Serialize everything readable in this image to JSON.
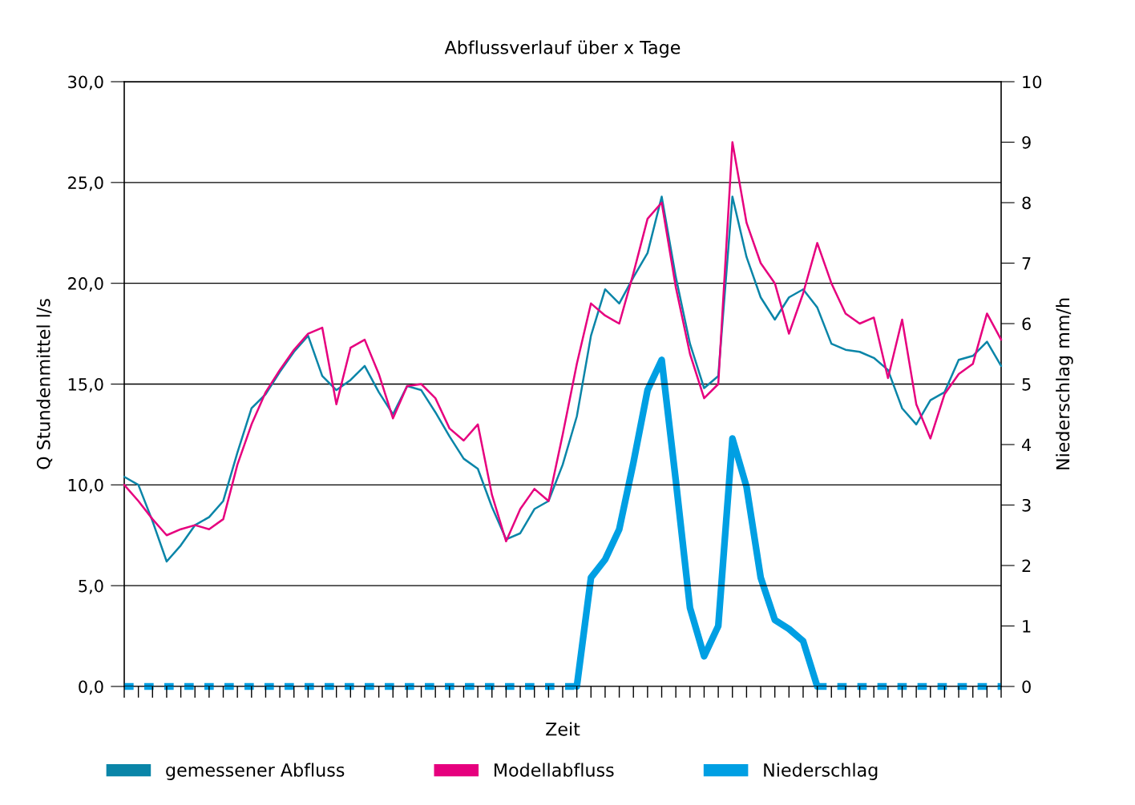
{
  "chart_data": {
    "type": "line",
    "title": "Abflussverlauf über x Tage",
    "xlabel": "Zeit",
    "ylabel": "Q Stundenmittel l/s",
    "y2label": "Niederschlag mm/h",
    "categories": [
      null,
      null,
      null,
      null,
      null,
      null,
      null,
      null,
      null,
      null,
      null,
      null,
      null,
      null,
      null,
      null,
      null,
      null,
      null,
      null,
      null,
      null,
      null,
      null,
      null,
      null,
      null,
      null,
      null,
      null,
      null,
      null,
      null,
      null,
      null,
      null,
      null,
      null,
      null,
      null,
      null,
      null,
      null,
      null,
      null,
      null,
      null,
      null,
      null,
      null,
      null,
      null,
      null,
      null,
      null,
      null,
      null,
      null,
      null,
      null,
      null,
      null,
      null
    ],
    "series": [
      {
        "name": "gemessener Abfluss",
        "color": "#0a85a8",
        "line_style": "solid",
        "values": [
          10.4,
          10.0,
          8.2,
          6.2,
          7.0,
          8.0,
          8.4,
          9.2,
          11.6,
          13.8,
          14.5,
          15.6,
          16.6,
          17.4,
          15.4,
          14.7,
          15.2,
          15.9,
          14.6,
          13.5,
          14.9,
          14.7,
          13.6,
          12.4,
          11.3,
          10.8,
          8.9,
          7.3,
          7.6,
          8.8,
          9.2,
          11.0,
          13.4,
          17.4,
          19.7,
          19.0,
          20.3,
          21.5,
          24.3,
          20.3,
          17.0,
          14.8,
          15.4,
          24.3,
          21.3,
          19.3,
          18.2,
          19.3,
          19.7,
          18.8,
          17.0,
          16.7,
          16.6,
          16.3,
          15.7,
          13.8,
          13.0,
          14.2,
          14.6,
          16.2,
          16.4,
          17.1,
          15.9
        ]
      },
      {
        "name": "Modellabfluss",
        "color": "#e6007e",
        "line_style": "solid",
        "values": [
          10.0,
          9.2,
          8.3,
          7.5,
          7.8,
          8.0,
          7.8,
          8.3,
          11.0,
          13.0,
          14.6,
          15.7,
          16.7,
          17.5,
          17.8,
          14.0,
          16.8,
          17.2,
          15.5,
          13.3,
          14.9,
          15.0,
          14.3,
          12.8,
          12.2,
          13.0,
          9.5,
          7.2,
          8.8,
          9.8,
          9.2,
          12.5,
          16.0,
          19.0,
          18.4,
          18.0,
          20.5,
          23.2,
          24.0,
          19.8,
          16.5,
          14.3,
          15.0,
          27.0,
          23.0,
          21.0,
          20.0,
          17.5,
          19.5,
          22.0,
          20.0,
          18.5,
          18.0,
          18.3,
          15.3,
          18.2,
          14.0,
          12.3,
          14.5,
          15.5,
          16.0,
          18.5,
          17.2
        ]
      },
      {
        "name": "Niederschlag",
        "color": "#009fe3",
        "axis": "y2",
        "line_style": "solid",
        "values": [
          null,
          null,
          null,
          null,
          null,
          null,
          null,
          null,
          null,
          null,
          null,
          null,
          null,
          null,
          null,
          null,
          null,
          null,
          null,
          null,
          null,
          null,
          null,
          null,
          null,
          null,
          null,
          null,
          null,
          null,
          null,
          null,
          0,
          1.8,
          2.1,
          2.6,
          3.7,
          4.9,
          5.4,
          3.4,
          1.3,
          0.5,
          1.0,
          4.1,
          3.3,
          1.8,
          1.1,
          0.95,
          0.75,
          0,
          null,
          null,
          null,
          null,
          null,
          null,
          null,
          null,
          null,
          null,
          null,
          null,
          null
        ]
      },
      {
        "color": "#009fe3",
        "axis": "y2",
        "line_style": "dashed",
        "values": [
          0,
          0,
          0,
          0,
          0,
          0,
          0,
          0,
          0,
          0,
          0,
          0,
          0,
          0,
          0,
          0,
          0,
          0,
          0,
          0,
          0,
          0,
          0,
          0,
          0,
          0,
          0,
          0,
          0,
          0,
          0,
          0,
          0,
          null,
          null,
          null,
          null,
          null,
          null,
          null,
          null,
          null,
          null,
          null,
          null,
          null,
          null,
          null,
          null,
          0,
          0,
          0,
          0,
          0,
          0,
          0,
          0,
          0,
          0,
          0,
          0,
          0,
          0
        ]
      }
    ],
    "ylim": [
      0,
      30
    ],
    "yticks": [
      {
        "value": 0,
        "label": "0,0"
      },
      {
        "value": 5,
        "label": "5,0"
      },
      {
        "value": 10,
        "label": "10,0"
      },
      {
        "value": 15,
        "label": "15,0"
      },
      {
        "value": 20,
        "label": "20,0"
      },
      {
        "value": 25,
        "label": "25,0"
      },
      {
        "value": 30,
        "label": "30,0"
      }
    ],
    "y2lim": [
      0,
      10
    ],
    "y2ticks": [
      0,
      1,
      2,
      3,
      4,
      5,
      6,
      7,
      8,
      9,
      10
    ],
    "grid": "y",
    "legend": "bottom",
    "tick_labels": "y",
    "marker": "none"
  }
}
